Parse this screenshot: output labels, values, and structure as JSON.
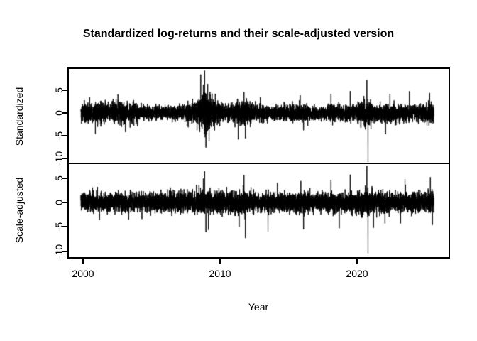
{
  "title": "Standardized log-returns and their scale-adjusted version",
  "x_axis": {
    "label": "Year",
    "ticks": [
      "2000",
      "2010",
      "2020"
    ],
    "tick_years": [
      2000,
      2010,
      2020
    ]
  },
  "chart_data": [
    {
      "type": "line",
      "name": "standardized-log-returns",
      "ylabel": "Standardized",
      "yticks": [
        5,
        0,
        -5,
        -10
      ],
      "ylim": [
        -11.1,
        9.5
      ],
      "x_range": [
        1999.85,
        2025.6
      ],
      "points_per_year": 252,
      "seed": 20080915,
      "color": "#000000",
      "grid": false,
      "legend": "none",
      "volatility_envelope": [
        [
          1999.85,
          1.05
        ],
        [
          2001.0,
          1.15
        ],
        [
          2002.0,
          1.1
        ],
        [
          2002.8,
          1.25
        ],
        [
          2003.5,
          1.0
        ],
        [
          2004.5,
          0.75
        ],
        [
          2005.5,
          0.7
        ],
        [
          2006.5,
          0.72
        ],
        [
          2007.3,
          0.85
        ],
        [
          2008.2,
          1.15
        ],
        [
          2008.8,
          2.1
        ],
        [
          2009.1,
          2.2
        ],
        [
          2009.5,
          1.5
        ],
        [
          2010.2,
          0.95
        ],
        [
          2010.8,
          0.9
        ],
        [
          2011.7,
          1.45
        ],
        [
          2012.3,
          1.0
        ],
        [
          2013.0,
          0.85
        ],
        [
          2014.0,
          0.7
        ],
        [
          2015.0,
          0.85
        ],
        [
          2015.9,
          1.05
        ],
        [
          2016.5,
          0.9
        ],
        [
          2017.2,
          0.6
        ],
        [
          2018.1,
          0.95
        ],
        [
          2019.0,
          0.85
        ],
        [
          2019.8,
          0.8
        ],
        [
          2020.3,
          1.35
        ],
        [
          2020.8,
          1.55
        ],
        [
          2021.3,
          0.9
        ],
        [
          2022.0,
          1.0
        ],
        [
          2022.8,
          1.05
        ],
        [
          2023.5,
          0.85
        ],
        [
          2024.3,
          0.9
        ],
        [
          2025.0,
          1.0
        ],
        [
          2025.6,
          1.05
        ]
      ],
      "extreme_events": [
        [
          2000.9,
          -4.6
        ],
        [
          2002.55,
          4.1
        ],
        [
          2003.1,
          -4.2
        ],
        [
          2008.78,
          6.2
        ],
        [
          2008.88,
          9.3
        ],
        [
          2008.97,
          -7.6
        ],
        [
          2009.1,
          6.4
        ],
        [
          2009.2,
          -6.2
        ],
        [
          2011.75,
          4.6
        ],
        [
          2011.85,
          -5.6
        ],
        [
          2015.85,
          3.9
        ],
        [
          2016.1,
          -3.8
        ],
        [
          2018.1,
          4.2
        ],
        [
          2019.5,
          4.8
        ],
        [
          2020.72,
          7.3
        ],
        [
          2020.8,
          -10.8
        ],
        [
          2022.4,
          4.2
        ],
        [
          2025.3,
          4.4
        ]
      ]
    },
    {
      "type": "line",
      "name": "scale-adjusted-log-returns",
      "ylabel": "Scale-adjusted",
      "yticks": [
        5,
        0,
        -5,
        -10
      ],
      "ylim": [
        -11.3,
        7.8
      ],
      "x_range": [
        1999.85,
        2025.6
      ],
      "points_per_year": 252,
      "seed": 7771234,
      "color": "#000000",
      "grid": false,
      "legend": "none",
      "volatility_envelope": [
        [
          1999.85,
          1.0
        ],
        [
          2005.0,
          0.95
        ],
        [
          2008.8,
          1.25
        ],
        [
          2009.3,
          1.1
        ],
        [
          2011.7,
          1.15
        ],
        [
          2014.0,
          0.95
        ],
        [
          2016.0,
          1.05
        ],
        [
          2017.2,
          0.9
        ],
        [
          2018.5,
          1.05
        ],
        [
          2020.7,
          1.2
        ],
        [
          2022.0,
          1.05
        ],
        [
          2025.6,
          1.0
        ]
      ],
      "extreme_events": [
        [
          2001.2,
          -3.6
        ],
        [
          2004.3,
          -3.4
        ],
        [
          2008.78,
          4.9
        ],
        [
          2008.88,
          6.4
        ],
        [
          2008.97,
          -6.1
        ],
        [
          2009.15,
          -5.6
        ],
        [
          2011.75,
          5.6
        ],
        [
          2011.85,
          -7.3
        ],
        [
          2013.5,
          -6.0
        ],
        [
          2015.9,
          4.4
        ],
        [
          2016.1,
          -5.5
        ],
        [
          2018.1,
          4.6
        ],
        [
          2018.7,
          -5.3
        ],
        [
          2019.5,
          5.7
        ],
        [
          2020.72,
          7.5
        ],
        [
          2020.8,
          -10.4
        ],
        [
          2021.2,
          -5.2
        ],
        [
          2023.5,
          4.8
        ],
        [
          2025.35,
          5.2
        ],
        [
          2025.5,
          -4.6
        ]
      ]
    }
  ]
}
